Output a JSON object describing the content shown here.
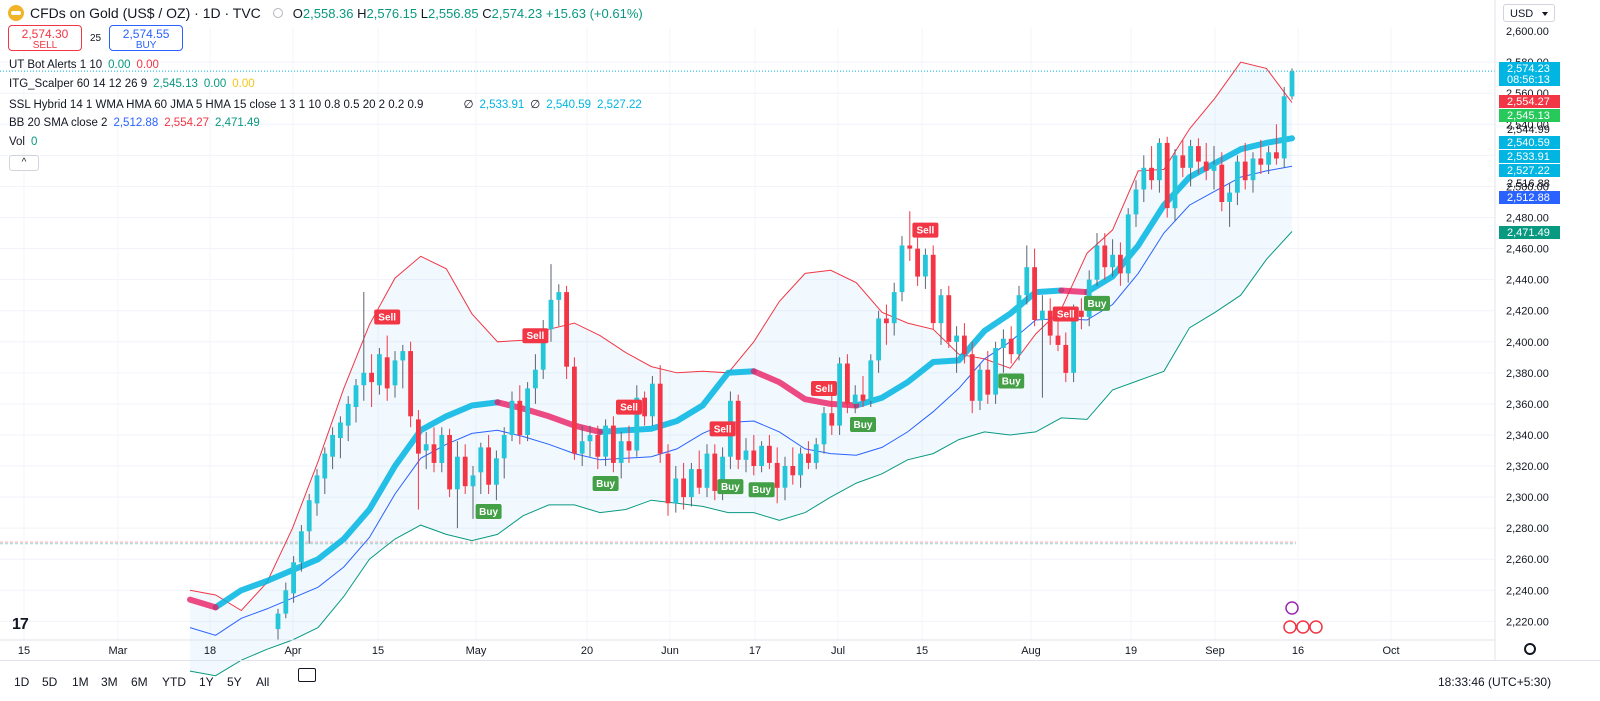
{
  "header": {
    "title": "CFDs on Gold (US$ / OZ) · 1D · TVC",
    "ohlc": {
      "o_label": "O",
      "o": "2,558.36",
      "h_label": "H",
      "h": "2,576.15",
      "l_label": "L",
      "l": "2,556.85",
      "c_label": "C",
      "c": "2,574.23",
      "change": "+15.63 (+0.61%)"
    }
  },
  "trade": {
    "sell_price": "2,574.30",
    "sell_label": "SELL",
    "spread": "25",
    "buy_price": "2,574.55",
    "buy_label": "BUY"
  },
  "indicators": [
    {
      "name": "UT Bot Alerts 1 10",
      "values": [
        {
          "text": "0.00",
          "color": "#089981"
        },
        {
          "text": "0.00",
          "color": "#f23645"
        }
      ]
    },
    {
      "name": "ITG_Scalper 60 14 12 26 9",
      "values": [
        {
          "text": "2,545.13",
          "color": "#089981"
        },
        {
          "text": "0.00",
          "color": "#089981"
        },
        {
          "text": "0.00",
          "color": "#f5c518"
        }
      ]
    },
    {
      "name": "SSL Hybrid 14 1 WMA HMA 60 JMA 5 HMA 15 close 1 3 1 10 0.8 0.5 20 2 0.2 0.9",
      "values": [
        {
          "text": "∅",
          "color": "#131722"
        },
        {
          "text": "2,533.91",
          "color": "#00b5e2"
        },
        {
          "text": "∅",
          "color": "#131722"
        },
        {
          "text": "2,540.59",
          "color": "#00b5e2"
        },
        {
          "text": "2,527.22",
          "color": "#00b5e2"
        }
      ]
    },
    {
      "name": "BB 20 SMA close 2",
      "values": [
        {
          "text": "2,512.88",
          "color": "#2962ff"
        },
        {
          "text": "2,554.27",
          "color": "#f23645"
        },
        {
          "text": "2,471.49",
          "color": "#089981"
        }
      ]
    },
    {
      "name": "Vol",
      "values": [
        {
          "text": "0",
          "color": "#089981"
        }
      ]
    }
  ],
  "collapse_glyph": "^",
  "currency": "USD",
  "timeframes": [
    "1D",
    "5D",
    "1M",
    "3M",
    "6M",
    "YTD",
    "1Y",
    "5Y",
    "All"
  ],
  "clock": "18:33:46 (UTC+5:30)",
  "logo_text": "17",
  "colors": {
    "up": "#26a69a",
    "down": "#f23645",
    "up_body": "#26c6da",
    "bb_upper": "#f23645",
    "bb_lower": "#089981",
    "bb_basis": "#2962ff",
    "ssl_up": "#00b5e2",
    "ssl_down": "#e91e63",
    "buy_tag": "#43a047",
    "sell_tag": "#f23645"
  },
  "chart_data": {
    "type": "candlestick",
    "title": "CFDs on Gold (US$ / OZ)",
    "ylim": [
      2208,
      2602
    ],
    "y_ticks": [
      2220,
      2240,
      2260,
      2280,
      2300,
      2320,
      2340,
      2360,
      2380,
      2400,
      2420,
      2440,
      2460,
      2480,
      2500,
      2520,
      2540,
      2560,
      2580
    ],
    "y_partial_tick": "2,600.00",
    "x_ticks": [
      "15",
      "Mar",
      "18",
      "Apr",
      "15",
      "May",
      "20",
      "Jun",
      "17",
      "Jul",
      "15",
      "Aug",
      "19",
      "Sep",
      "16",
      "Oct"
    ],
    "price_labels": [
      {
        "value": "2,574.23",
        "sub": "08:56:13",
        "color": "#00b5e2"
      },
      {
        "value": "2,554.27",
        "color": "#f23645"
      },
      {
        "value": "2,545.13",
        "color": "#26c95a"
      },
      {
        "value": "2,544.99",
        "color": "none"
      },
      {
        "value": "2,540.59",
        "color": "#00b5e2"
      },
      {
        "value": "2,533.91",
        "color": "#00b5e2"
      },
      {
        "value": "2,527.22",
        "color": "#00b5e2"
      },
      {
        "value": "2,516.88",
        "color": "none"
      },
      {
        "value": "2,512.88",
        "color": "#2962ff"
      },
      {
        "value": "2,471.49",
        "color": "#089981"
      }
    ],
    "candles": [
      {
        "o": 2215,
        "h": 2228,
        "l": 2208,
        "c": 2225
      },
      {
        "o": 2225,
        "h": 2245,
        "l": 2222,
        "c": 2240
      },
      {
        "o": 2238,
        "h": 2262,
        "l": 2232,
        "c": 2258
      },
      {
        "o": 2258,
        "h": 2282,
        "l": 2252,
        "c": 2278
      },
      {
        "o": 2278,
        "h": 2302,
        "l": 2270,
        "c": 2298
      },
      {
        "o": 2296,
        "h": 2318,
        "l": 2288,
        "c": 2314
      },
      {
        "o": 2312,
        "h": 2332,
        "l": 2302,
        "c": 2328
      },
      {
        "o": 2326,
        "h": 2345,
        "l": 2318,
        "c": 2340
      },
      {
        "o": 2338,
        "h": 2352,
        "l": 2325,
        "c": 2348
      },
      {
        "o": 2346,
        "h": 2365,
        "l": 2336,
        "c": 2360
      },
      {
        "o": 2358,
        "h": 2376,
        "l": 2348,
        "c": 2372
      },
      {
        "o": 2372,
        "h": 2432,
        "l": 2362,
        "c": 2380
      },
      {
        "o": 2380,
        "h": 2392,
        "l": 2358,
        "c": 2374
      },
      {
        "o": 2372,
        "h": 2396,
        "l": 2366,
        "c": 2392
      },
      {
        "o": 2390,
        "h": 2404,
        "l": 2362,
        "c": 2370
      },
      {
        "o": 2372,
        "h": 2394,
        "l": 2364,
        "c": 2388
      },
      {
        "o": 2388,
        "h": 2398,
        "l": 2370,
        "c": 2394
      },
      {
        "o": 2394,
        "h": 2400,
        "l": 2345,
        "c": 2352
      },
      {
        "o": 2350,
        "h": 2356,
        "l": 2292,
        "c": 2328
      },
      {
        "o": 2330,
        "h": 2342,
        "l": 2318,
        "c": 2334
      },
      {
        "o": 2334,
        "h": 2345,
        "l": 2316,
        "c": 2322
      },
      {
        "o": 2322,
        "h": 2345,
        "l": 2316,
        "c": 2340
      },
      {
        "o": 2340,
        "h": 2344,
        "l": 2300,
        "c": 2305
      },
      {
        "o": 2305,
        "h": 2336,
        "l": 2280,
        "c": 2326
      },
      {
        "o": 2326,
        "h": 2334,
        "l": 2302,
        "c": 2307
      },
      {
        "o": 2307,
        "h": 2320,
        "l": 2286,
        "c": 2314
      },
      {
        "o": 2316,
        "h": 2335,
        "l": 2302,
        "c": 2332
      },
      {
        "o": 2332,
        "h": 2340,
        "l": 2302,
        "c": 2308
      },
      {
        "o": 2308,
        "h": 2330,
        "l": 2298,
        "c": 2325
      },
      {
        "o": 2325,
        "h": 2345,
        "l": 2312,
        "c": 2340
      },
      {
        "o": 2340,
        "h": 2368,
        "l": 2336,
        "c": 2362
      },
      {
        "o": 2362,
        "h": 2372,
        "l": 2334,
        "c": 2340
      },
      {
        "o": 2340,
        "h": 2374,
        "l": 2336,
        "c": 2370
      },
      {
        "o": 2370,
        "h": 2392,
        "l": 2360,
        "c": 2382
      },
      {
        "o": 2382,
        "h": 2414,
        "l": 2376,
        "c": 2408
      },
      {
        "o": 2408,
        "h": 2450,
        "l": 2400,
        "c": 2427
      },
      {
        "o": 2427,
        "h": 2437,
        "l": 2410,
        "c": 2432
      },
      {
        "o": 2432,
        "h": 2436,
        "l": 2376,
        "c": 2384
      },
      {
        "o": 2384,
        "h": 2390,
        "l": 2324,
        "c": 2328
      },
      {
        "o": 2328,
        "h": 2346,
        "l": 2320,
        "c": 2336
      },
      {
        "o": 2336,
        "h": 2346,
        "l": 2326,
        "c": 2340
      },
      {
        "o": 2340,
        "h": 2346,
        "l": 2318,
        "c": 2326
      },
      {
        "o": 2326,
        "h": 2350,
        "l": 2320,
        "c": 2346
      },
      {
        "o": 2346,
        "h": 2352,
        "l": 2316,
        "c": 2322
      },
      {
        "o": 2322,
        "h": 2342,
        "l": 2312,
        "c": 2336
      },
      {
        "o": 2336,
        "h": 2346,
        "l": 2322,
        "c": 2330
      },
      {
        "o": 2330,
        "h": 2372,
        "l": 2326,
        "c": 2364
      },
      {
        "o": 2364,
        "h": 2368,
        "l": 2346,
        "c": 2352
      },
      {
        "o": 2352,
        "h": 2378,
        "l": 2346,
        "c": 2373
      },
      {
        "o": 2373,
        "h": 2385,
        "l": 2322,
        "c": 2328
      },
      {
        "o": 2328,
        "h": 2334,
        "l": 2288,
        "c": 2296
      },
      {
        "o": 2296,
        "h": 2320,
        "l": 2290,
        "c": 2312
      },
      {
        "o": 2312,
        "h": 2322,
        "l": 2292,
        "c": 2300
      },
      {
        "o": 2300,
        "h": 2322,
        "l": 2294,
        "c": 2318
      },
      {
        "o": 2318,
        "h": 2330,
        "l": 2302,
        "c": 2306
      },
      {
        "o": 2306,
        "h": 2334,
        "l": 2300,
        "c": 2328
      },
      {
        "o": 2328,
        "h": 2334,
        "l": 2298,
        "c": 2304
      },
      {
        "o": 2304,
        "h": 2332,
        "l": 2298,
        "c": 2326
      },
      {
        "o": 2326,
        "h": 2368,
        "l": 2318,
        "c": 2362
      },
      {
        "o": 2362,
        "h": 2366,
        "l": 2318,
        "c": 2324
      },
      {
        "o": 2324,
        "h": 2338,
        "l": 2316,
        "c": 2330
      },
      {
        "o": 2330,
        "h": 2340,
        "l": 2314,
        "c": 2320
      },
      {
        "o": 2320,
        "h": 2336,
        "l": 2316,
        "c": 2333
      },
      {
        "o": 2333,
        "h": 2340,
        "l": 2318,
        "c": 2322
      },
      {
        "o": 2322,
        "h": 2332,
        "l": 2296,
        "c": 2306
      },
      {
        "o": 2306,
        "h": 2326,
        "l": 2298,
        "c": 2320
      },
      {
        "o": 2320,
        "h": 2332,
        "l": 2308,
        "c": 2314
      },
      {
        "o": 2314,
        "h": 2332,
        "l": 2306,
        "c": 2328
      },
      {
        "o": 2328,
        "h": 2336,
        "l": 2318,
        "c": 2322
      },
      {
        "o": 2322,
        "h": 2338,
        "l": 2318,
        "c": 2334
      },
      {
        "o": 2334,
        "h": 2358,
        "l": 2328,
        "c": 2354
      },
      {
        "o": 2354,
        "h": 2372,
        "l": 2340,
        "c": 2346
      },
      {
        "o": 2346,
        "h": 2390,
        "l": 2340,
        "c": 2386
      },
      {
        "o": 2386,
        "h": 2392,
        "l": 2354,
        "c": 2360
      },
      {
        "o": 2360,
        "h": 2372,
        "l": 2354,
        "c": 2366
      },
      {
        "o": 2366,
        "h": 2378,
        "l": 2358,
        "c": 2362
      },
      {
        "o": 2362,
        "h": 2392,
        "l": 2358,
        "c": 2388
      },
      {
        "o": 2388,
        "h": 2420,
        "l": 2380,
        "c": 2415
      },
      {
        "o": 2415,
        "h": 2424,
        "l": 2398,
        "c": 2412
      },
      {
        "o": 2412,
        "h": 2438,
        "l": 2404,
        "c": 2432
      },
      {
        "o": 2432,
        "h": 2468,
        "l": 2426,
        "c": 2462
      },
      {
        "o": 2462,
        "h": 2484,
        "l": 2452,
        "c": 2460
      },
      {
        "o": 2460,
        "h": 2476,
        "l": 2436,
        "c": 2442
      },
      {
        "o": 2442,
        "h": 2460,
        "l": 2434,
        "c": 2456
      },
      {
        "o": 2456,
        "h": 2462,
        "l": 2408,
        "c": 2412
      },
      {
        "o": 2412,
        "h": 2434,
        "l": 2398,
        "c": 2430
      },
      {
        "o": 2430,
        "h": 2436,
        "l": 2396,
        "c": 2400
      },
      {
        "o": 2400,
        "h": 2410,
        "l": 2380,
        "c": 2404
      },
      {
        "o": 2404,
        "h": 2412,
        "l": 2386,
        "c": 2392
      },
      {
        "o": 2392,
        "h": 2400,
        "l": 2354,
        "c": 2362
      },
      {
        "o": 2362,
        "h": 2386,
        "l": 2356,
        "c": 2382
      },
      {
        "o": 2382,
        "h": 2394,
        "l": 2360,
        "c": 2366
      },
      {
        "o": 2366,
        "h": 2400,
        "l": 2360,
        "c": 2396
      },
      {
        "o": 2396,
        "h": 2408,
        "l": 2380,
        "c": 2402
      },
      {
        "o": 2402,
        "h": 2410,
        "l": 2386,
        "c": 2392
      },
      {
        "o": 2392,
        "h": 2436,
        "l": 2388,
        "c": 2430
      },
      {
        "o": 2430,
        "h": 2462,
        "l": 2424,
        "c": 2448
      },
      {
        "o": 2448,
        "h": 2460,
        "l": 2410,
        "c": 2414
      },
      {
        "o": 2414,
        "h": 2430,
        "l": 2364,
        "c": 2420
      },
      {
        "o": 2420,
        "h": 2428,
        "l": 2398,
        "c": 2404
      },
      {
        "o": 2404,
        "h": 2420,
        "l": 2394,
        "c": 2398
      },
      {
        "o": 2398,
        "h": 2406,
        "l": 2374,
        "c": 2380
      },
      {
        "o": 2380,
        "h": 2424,
        "l": 2374,
        "c": 2420
      },
      {
        "o": 2420,
        "h": 2428,
        "l": 2408,
        "c": 2416
      },
      {
        "o": 2416,
        "h": 2446,
        "l": 2410,
        "c": 2440
      },
      {
        "o": 2440,
        "h": 2470,
        "l": 2436,
        "c": 2462
      },
      {
        "o": 2462,
        "h": 2470,
        "l": 2440,
        "c": 2448
      },
      {
        "o": 2448,
        "h": 2466,
        "l": 2442,
        "c": 2456
      },
      {
        "o": 2456,
        "h": 2464,
        "l": 2436,
        "c": 2444
      },
      {
        "o": 2444,
        "h": 2486,
        "l": 2438,
        "c": 2482
      },
      {
        "o": 2482,
        "h": 2504,
        "l": 2474,
        "c": 2498
      },
      {
        "o": 2498,
        "h": 2520,
        "l": 2490,
        "c": 2512
      },
      {
        "o": 2512,
        "h": 2526,
        "l": 2498,
        "c": 2504
      },
      {
        "o": 2504,
        "h": 2531,
        "l": 2496,
        "c": 2528
      },
      {
        "o": 2528,
        "h": 2532,
        "l": 2480,
        "c": 2486
      },
      {
        "o": 2486,
        "h": 2524,
        "l": 2478,
        "c": 2520
      },
      {
        "o": 2520,
        "h": 2530,
        "l": 2506,
        "c": 2512
      },
      {
        "o": 2512,
        "h": 2530,
        "l": 2500,
        "c": 2526
      },
      {
        "o": 2526,
        "h": 2531,
        "l": 2508,
        "c": 2516
      },
      {
        "o": 2516,
        "h": 2528,
        "l": 2504,
        "c": 2510
      },
      {
        "o": 2510,
        "h": 2526,
        "l": 2498,
        "c": 2514
      },
      {
        "o": 2514,
        "h": 2522,
        "l": 2484,
        "c": 2490
      },
      {
        "o": 2490,
        "h": 2502,
        "l": 2474,
        "c": 2496
      },
      {
        "o": 2496,
        "h": 2520,
        "l": 2488,
        "c": 2516
      },
      {
        "o": 2516,
        "h": 2528,
        "l": 2498,
        "c": 2504
      },
      {
        "o": 2504,
        "h": 2522,
        "l": 2496,
        "c": 2518
      },
      {
        "o": 2518,
        "h": 2530,
        "l": 2508,
        "c": 2514
      },
      {
        "o": 2514,
        "h": 2526,
        "l": 2508,
        "c": 2522
      },
      {
        "o": 2522,
        "h": 2540,
        "l": 2514,
        "c": 2518
      },
      {
        "o": 2518,
        "h": 2564,
        "l": 2512,
        "c": 2558
      },
      {
        "o": 2558,
        "h": 2576,
        "l": 2556,
        "c": 2574
      }
    ],
    "bollinger": {
      "upper": [
        2240,
        2237,
        2227,
        2245,
        2280,
        2323,
        2370,
        2411,
        2441,
        2455,
        2447,
        2418,
        2400,
        2401,
        2408,
        2412,
        2404,
        2393,
        2384,
        2380,
        2381,
        2380,
        2400,
        2426,
        2444,
        2446,
        2438,
        2419,
        2412,
        2408,
        2392,
        2389,
        2383,
        2405,
        2421,
        2457,
        2472,
        2510,
        2511,
        2537,
        2557,
        2580,
        2576,
        2554
      ],
      "basis": [
        2216,
        2211,
        2222,
        2228,
        2235,
        2242,
        2255,
        2274,
        2302,
        2325,
        2334,
        2341,
        2343,
        2339,
        2334,
        2328,
        2324,
        2325,
        2326,
        2331,
        2341,
        2348,
        2349,
        2342,
        2331,
        2328,
        2327,
        2332,
        2342,
        2355,
        2370,
        2389,
        2400,
        2414,
        2415,
        2414,
        2424,
        2444,
        2470,
        2488,
        2497,
        2506,
        2510,
        2513
      ],
      "lower": [
        2188,
        2185,
        2195,
        2202,
        2208,
        2216,
        2236,
        2260,
        2273,
        2282,
        2276,
        2272,
        2276,
        2288,
        2295,
        2295,
        2290,
        2292,
        2298,
        2296,
        2294,
        2290,
        2290,
        2285,
        2290,
        2300,
        2309,
        2315,
        2324,
        2328,
        2337,
        2342,
        2340,
        2342,
        2351,
        2350,
        2369,
        2375,
        2381,
        2409,
        2419,
        2430,
        2453,
        2471
      ]
    },
    "signals": [
      {
        "text": "Sell",
        "kind": "sell",
        "i": 14
      },
      {
        "text": "Sell",
        "kind": "sell",
        "i": 33
      },
      {
        "text": "Sell",
        "kind": "sell",
        "i": 45
      },
      {
        "text": "Sell",
        "kind": "sell",
        "i": 57
      },
      {
        "text": "Sell",
        "kind": "sell",
        "i": 70
      },
      {
        "text": "Sell",
        "kind": "sell",
        "i": 83
      },
      {
        "text": "Sell",
        "kind": "sell",
        "i": 101
      },
      {
        "text": "Buy",
        "kind": "buy",
        "i": 27
      },
      {
        "text": "Buy",
        "kind": "buy",
        "i": 42
      },
      {
        "text": "Buy",
        "kind": "buy",
        "i": 58
      },
      {
        "text": "Buy",
        "kind": "buy",
        "i": 62
      },
      {
        "text": "Buy",
        "kind": "buy",
        "i": 75
      },
      {
        "text": "Buy",
        "kind": "buy",
        "i": 94
      },
      {
        "text": "Buy",
        "kind": "buy",
        "i": 105
      }
    ]
  }
}
